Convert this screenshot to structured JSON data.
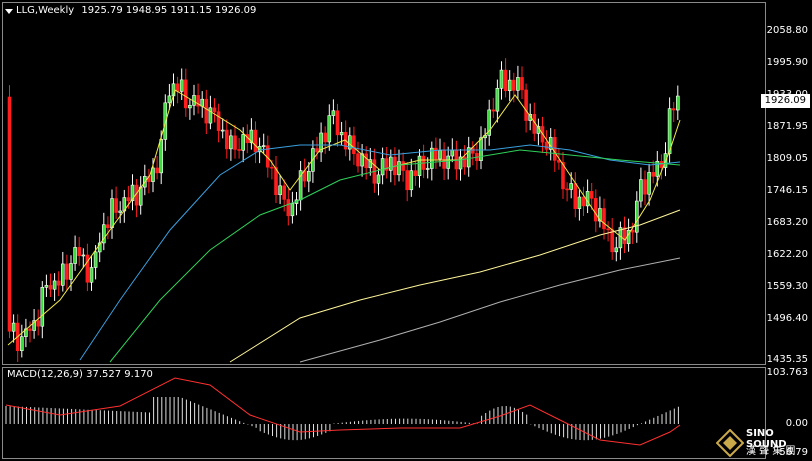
{
  "header": {
    "symbol": "LLG,Weekly",
    "open": "1925.79",
    "high": "1948.95",
    "low": "1911.15",
    "close": "1926.09"
  },
  "price_axis": {
    "labels": [
      "2058.80",
      "1995.90",
      "1933.00",
      "1871.95",
      "1809.05",
      "1746.15",
      "1683.20",
      "1622.20",
      "1559.30",
      "1496.40",
      "1435.35"
    ],
    "current_price": "1926.09"
  },
  "macd": {
    "label": "MACD(12,26,9) 37.527 9.170",
    "axis_labels": [
      "103.763",
      "0.00",
      "-56.79"
    ]
  },
  "logo": {
    "brand": "SINO SOUND",
    "chinese": "漢 聲 集 團"
  },
  "colors": {
    "bull_candle": "#ffffff",
    "bull_fill": "#3cdc3c",
    "bear_candle": "#ff1e1e",
    "ma_fast": "#f0e84a",
    "ma_mid_blue": "#3aa0e0",
    "ma_mid_green": "#2fd15a",
    "ma_slow": "#fff69a",
    "ma_200": "#b0b0b0",
    "signal_line": "#ff3030",
    "background": "#000000"
  },
  "chart_data": {
    "type": "candlestick",
    "symbol": "LLG",
    "timeframe": "Weekly",
    "y_range": [
      1435.35,
      2058.8
    ],
    "last_bar": {
      "open": 1925.79,
      "high": 1948.95,
      "low": 1911.15,
      "close": 1926.09
    },
    "indicators": [
      "MACD(12,26,9)"
    ],
    "macd_values": {
      "main": 37.527,
      "signal": 9.17
    },
    "macd_range": [
      -56.79,
      103.763
    ]
  }
}
